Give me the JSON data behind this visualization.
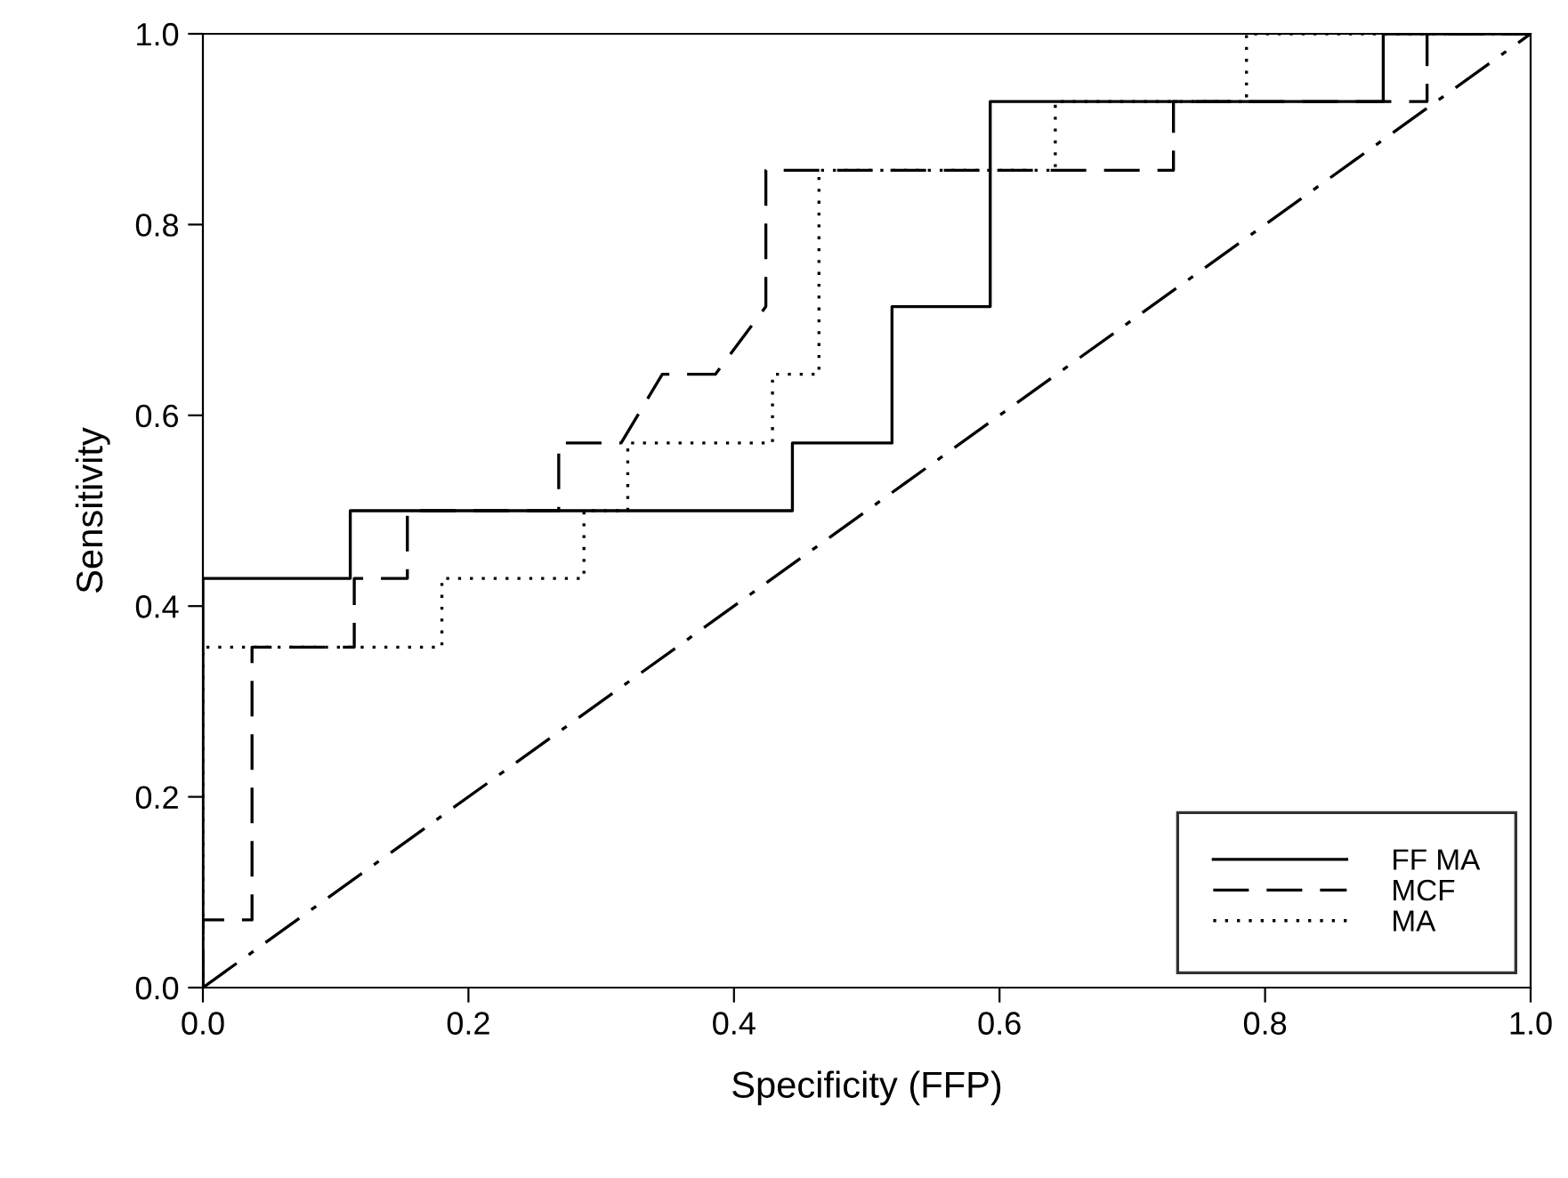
{
  "chart_data": {
    "type": "line",
    "xlabel": "Specificity (FFP)",
    "ylabel": "Sensitivity",
    "xlim": [
      0,
      1
    ],
    "ylim": [
      0,
      1
    ],
    "xticks": [
      {
        "value": 0,
        "label": "0.0"
      },
      {
        "value": 0.2,
        "label": "0.2"
      },
      {
        "value": 0.4,
        "label": "0.4"
      },
      {
        "value": 0.6,
        "label": "0.6"
      },
      {
        "value": 0.8,
        "label": "0.8"
      },
      {
        "value": 1,
        "label": "1.0"
      }
    ],
    "yticks": [
      {
        "value": 0,
        "label": "0.0"
      },
      {
        "value": 0.2,
        "label": "0.2"
      },
      {
        "value": 0.4,
        "label": "0.4"
      },
      {
        "value": 0.6,
        "label": "0.6"
      },
      {
        "value": 0.8,
        "label": "0.8"
      },
      {
        "value": 1,
        "label": "1.0"
      }
    ],
    "legend": "bottom right",
    "grid": false,
    "marker": "none",
    "series": [
      {
        "name": "FF MA",
        "color": "#000000",
        "line_style": "solid",
        "x": [
          0,
          0,
          0.111,
          0.111,
          0.444,
          0.444,
          0.519,
          0.519,
          0.593,
          0.593,
          0.889,
          0.889,
          1
        ],
        "values": [
          0,
          0.429,
          0.429,
          0.5,
          0.5,
          0.571,
          0.571,
          0.714,
          0.714,
          0.929,
          0.929,
          1,
          1
        ]
      },
      {
        "name": "MCF",
        "color": "#000000",
        "line_style": "dashed",
        "x": [
          0,
          0,
          0.037,
          0.037,
          0.114,
          0.114,
          0.154,
          0.154,
          0.268,
          0.268,
          0.315,
          0.346,
          0.386,
          0.424,
          0.424,
          0.731,
          0.731,
          0.922,
          0.922,
          1
        ],
        "values": [
          0,
          0.071,
          0.071,
          0.357,
          0.357,
          0.429,
          0.429,
          0.5,
          0.5,
          0.571,
          0.571,
          0.643,
          0.643,
          0.714,
          0.857,
          0.857,
          0.929,
          0.929,
          1,
          1
        ]
      },
      {
        "name": "MA",
        "color": "#000000",
        "line_style": "dotted",
        "x": [
          0,
          0,
          0.18,
          0.18,
          0.287,
          0.287,
          0.32,
          0.32,
          0.429,
          0.429,
          0.464,
          0.464,
          0.642,
          0.642,
          0.786,
          0.786,
          1
        ],
        "values": [
          0,
          0.357,
          0.357,
          0.429,
          0.429,
          0.5,
          0.5,
          0.571,
          0.571,
          0.643,
          0.643,
          0.857,
          0.857,
          0.929,
          0.929,
          1,
          1
        ]
      },
      {
        "color": "#000000",
        "line_style": "dashdot",
        "x": [
          0,
          1
        ],
        "values": [
          0,
          1
        ]
      }
    ]
  }
}
